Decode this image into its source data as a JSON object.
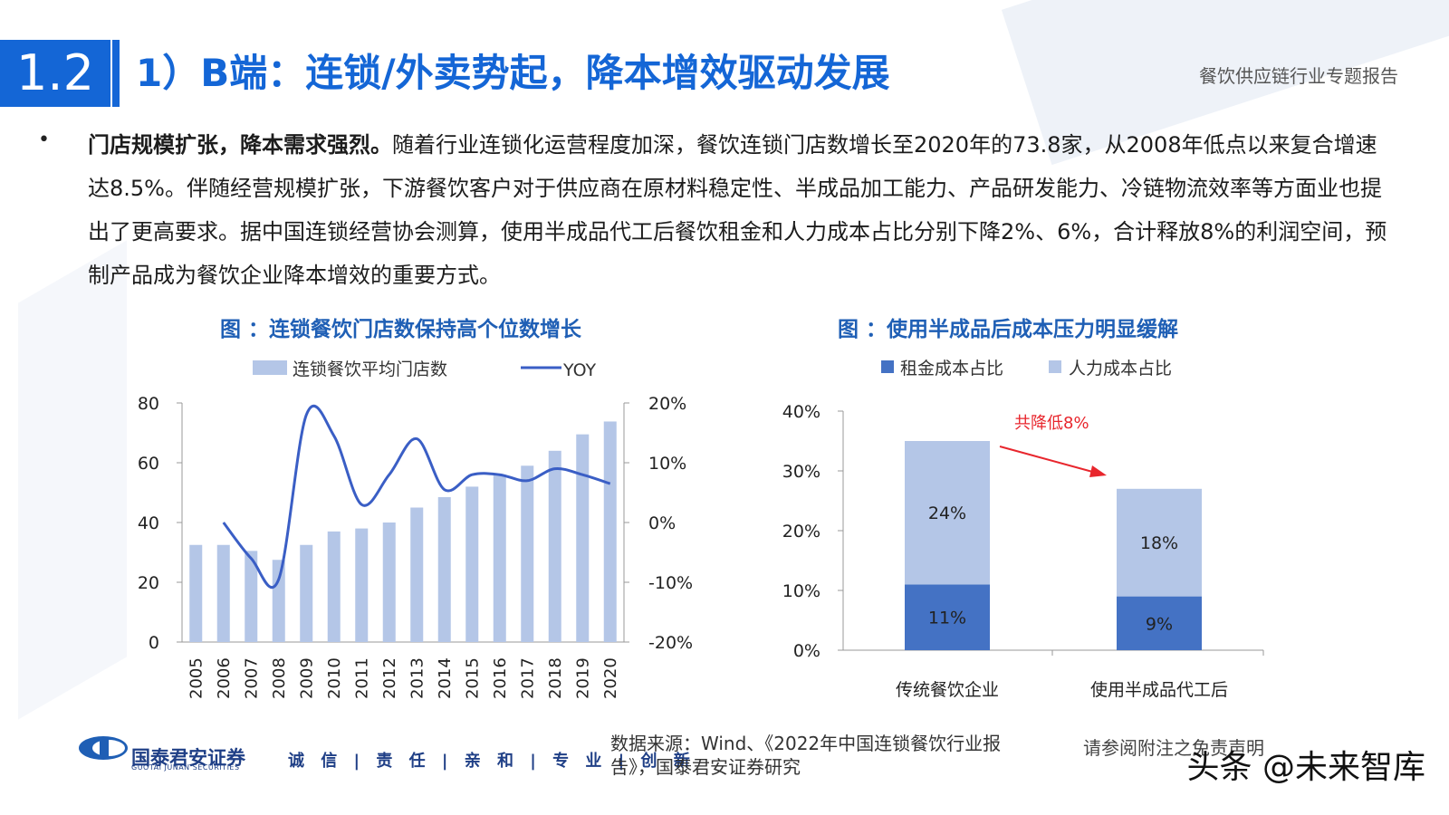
{
  "header": {
    "section_no": "1.2",
    "title": "1）B端：连锁/外卖势起，降本增效驱动发展",
    "report_name": "餐饮供应链行业专题报告"
  },
  "body": {
    "bullet": "•",
    "lead": "门店规模扩张，降本需求强烈。",
    "text": "随着行业连锁化运营程度加深，餐饮连锁门店数增长至2020年的73.8家，从2008年低点以来复合增速达8.5%。伴随经营规模扩张，下游餐饮客户对于供应商在原材料稳定性、半成品加工能力、产品研发能力、冷链物流效率等方面业也提出了更高要求。据中国连锁经营协会测算，使用半成品代工后餐饮租金和人力成本占比分别下降2%、6%，合计释放8%的利润空间，预制产品成为餐饮企业降本增效的重要方式。"
  },
  "chart_data": [
    {
      "type": "bar",
      "title": "图 ：连锁餐饮门店数保持高个位数增长",
      "categories": [
        "2005",
        "2006",
        "2007",
        "2008",
        "2009",
        "2010",
        "2011",
        "2012",
        "2013",
        "2014",
        "2015",
        "2016",
        "2017",
        "2018",
        "2019",
        "2020"
      ],
      "series": [
        {
          "name": "连锁餐饮平均门店数",
          "type": "bar",
          "axis": "left",
          "color": "#b4c6e7",
          "values": [
            32.5,
            32.5,
            30.5,
            27.5,
            32.5,
            37,
            38,
            40,
            45,
            48.5,
            52,
            56,
            59,
            64,
            69.5,
            73.8
          ]
        },
        {
          "name": "YOY",
          "type": "line",
          "axis": "right",
          "color": "#3a5ec5",
          "smooth": true,
          "x": [
            "2006",
            "2007",
            "2008",
            "2009",
            "2010",
            "2011",
            "2012",
            "2013",
            "2014",
            "2015",
            "2016",
            "2017",
            "2018",
            "2019",
            "2020"
          ],
          "values": [
            0.0,
            -6.0,
            -9.5,
            18.0,
            14.5,
            3.0,
            8.0,
            14.0,
            5.5,
            8.0,
            8.0,
            7.0,
            9.0,
            8.0,
            6.5
          ]
        }
      ],
      "y_left": {
        "ylim": [
          0,
          80
        ],
        "ticks": [
          "0",
          "20",
          "40",
          "60",
          "80"
        ]
      },
      "y_right": {
        "ylim": [
          -20,
          20
        ],
        "ticks": [
          "-20%",
          "-10%",
          "0%",
          "10%",
          "20%"
        ]
      },
      "legend_position": "top"
    },
    {
      "type": "bar",
      "stacked": true,
      "title": "图 ：使用半成品后成本压力明显缓解",
      "categories": [
        "传统餐饮企业",
        "使用半成品代工后"
      ],
      "series": [
        {
          "name": "租金成本占比",
          "color": "#4472c4",
          "values": [
            11,
            9
          ],
          "labels": [
            "11%",
            "9%"
          ]
        },
        {
          "name": "人力成本占比",
          "color": "#b4c6e7",
          "values": [
            24,
            18
          ],
          "labels": [
            "24%",
            "18%"
          ]
        }
      ],
      "ylim": [
        0,
        40
      ],
      "y_ticks": [
        "0%",
        "10%",
        "20%",
        "30%",
        "40%"
      ],
      "annotation": "共降低8%",
      "annotation_color": "#e8262d",
      "legend_position": "top"
    }
  ],
  "footer": {
    "logo_name": "国泰君安证券",
    "logo_sub": "GUOTAI JUNAN SECURITIES",
    "motto": "诚 信 | 责 任 | 亲 和 | 专 业 | 创 新",
    "source": "数据来源：Wind、《2022年中国连锁餐饮行业报告》，国泰君安证券研究",
    "disclaimer": "请参阅附注之免责声明",
    "watermark": "头条 @未来智库"
  }
}
